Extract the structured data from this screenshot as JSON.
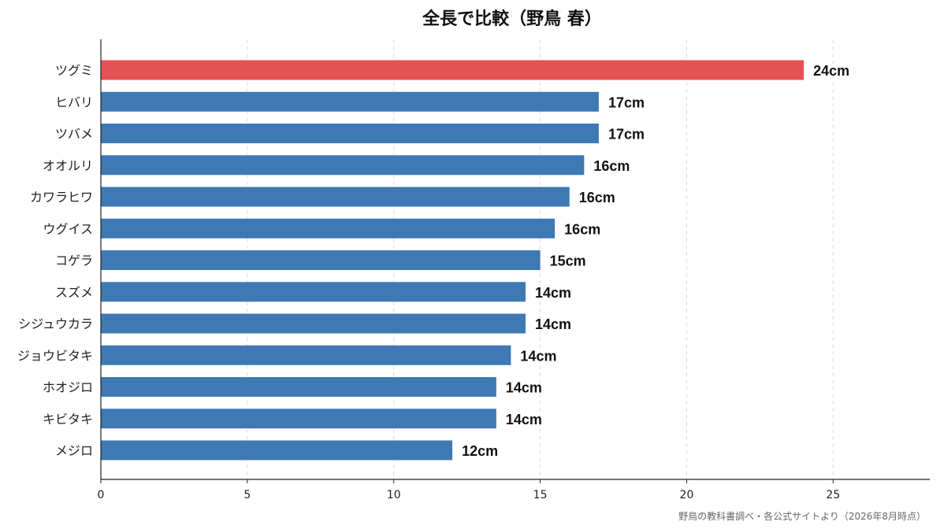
{
  "chart_data": {
    "type": "bar",
    "orientation": "horizontal",
    "title": "全長で比較（野鳥 春）",
    "xlabel": "",
    "ylabel": "",
    "xlim": [
      0,
      28.3
    ],
    "xticks": [
      0,
      5,
      10,
      15,
      20,
      25
    ],
    "grid": "vertical-dashed",
    "categories": [
      "ツグミ",
      "ヒバリ",
      "ツバメ",
      "オオルリ",
      "カワラヒワ",
      "ウグイス",
      "コゲラ",
      "スズメ",
      "シジュウカラ",
      "ジョウビタキ",
      "ホオジロ",
      "キビタキ",
      "メジロ"
    ],
    "values": [
      24,
      17,
      17,
      16.5,
      16,
      15.5,
      15,
      14.5,
      14.5,
      14,
      13.5,
      13.5,
      12
    ],
    "data_labels": [
      "24cm",
      "17cm",
      "17cm",
      "16cm",
      "16cm",
      "16cm",
      "15cm",
      "14cm",
      "14cm",
      "14cm",
      "14cm",
      "14cm",
      "12cm"
    ],
    "highlight_index": 0,
    "colors": {
      "highlight": "#e65153",
      "default": "#3e78b5"
    }
  },
  "source": "野鳥の教科書調べ・各公式サイトより（2026年8月時点）"
}
